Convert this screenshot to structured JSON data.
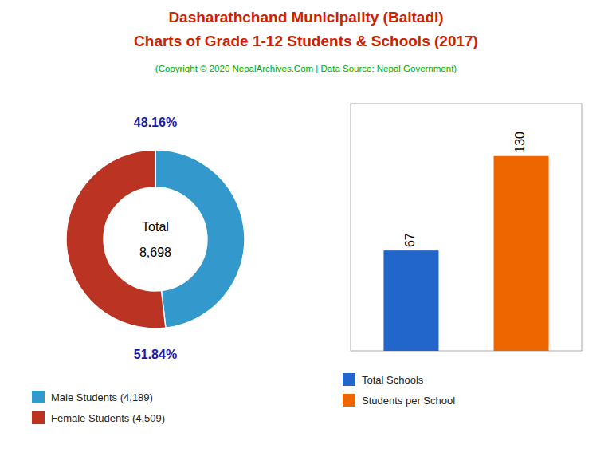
{
  "title": [
    "Dasharathchand Municipality (Baitadi)",
    "Charts of Grade 1-12 Students & Schools (2017)"
  ],
  "subtitle": "(Copyright © 2020 NepalArchives.Com | Data Source: Nepal Government)",
  "chart_data": [
    {
      "type": "pie",
      "categories": [
        "Male Students (4,189)",
        "Female Students (4,509)"
      ],
      "values": [
        48.16,
        51.84
      ],
      "value_labels": [
        "48.16%",
        "51.84%"
      ],
      "colors": [
        "#3399cc",
        "#bb3322"
      ],
      "data_labels": true,
      "annotations": [
        "Total",
        "8,698"
      ],
      "legend": "bottom"
    },
    {
      "type": "bar",
      "categories": [
        "Total Schools",
        "Students per School"
      ],
      "values": [
        67,
        130
      ],
      "colors": [
        "#2266cc",
        "#ee6600"
      ],
      "ylim": [
        0,
        165
      ],
      "yticks": [],
      "tick_labels": false,
      "data_labels": true,
      "legend": "bottom"
    }
  ]
}
